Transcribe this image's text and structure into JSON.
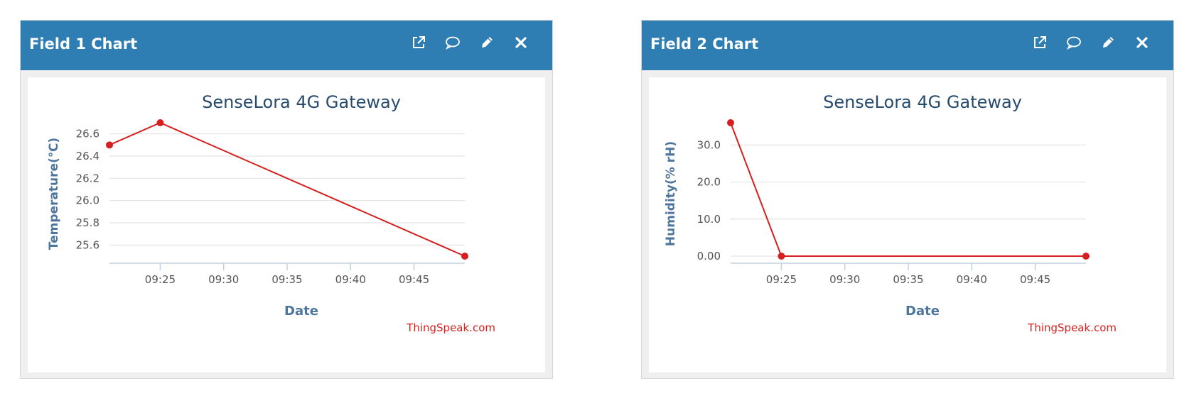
{
  "panels": [
    {
      "title": "Field 1 Chart",
      "icons": [
        "external-link-icon",
        "comment-icon",
        "pencil-icon",
        "close-icon"
      ]
    },
    {
      "title": "Field 2 Chart",
      "icons": [
        "external-link-icon",
        "comment-icon",
        "pencil-icon",
        "close-icon"
      ]
    }
  ],
  "colors": {
    "header": "#2e7db3",
    "series": "#d62020",
    "title": "#274b6d",
    "axis_label": "#4d759e",
    "credit": "#d62020"
  },
  "chart_data": [
    {
      "type": "line",
      "title": "SenseLora 4G Gateway",
      "xlabel": "Date",
      "ylabel": "Temperature(℃)",
      "credit": "ThingSpeak.com",
      "x": [
        "09:21",
        "09:25",
        "09:49"
      ],
      "series": [
        {
          "values": [
            26.5,
            26.7,
            25.5
          ]
        }
      ],
      "xlim": [
        "09:21",
        "09:49"
      ],
      "ylim": [
        25.5,
        26.7
      ],
      "x_ticks": [
        "09:25",
        "09:30",
        "09:35",
        "09:40",
        "09:45"
      ],
      "y_ticks": [
        25.6,
        25.8,
        26.0,
        26.2,
        26.4,
        26.6
      ],
      "y_tick_labels": [
        "25.6",
        "25.8",
        "26.0",
        "26.2",
        "26.4",
        "26.6"
      ],
      "grid": true,
      "legend": "none"
    },
    {
      "type": "line",
      "title": "SenseLora 4G Gateway",
      "xlabel": "Date",
      "ylabel": "Humidity(% rH)",
      "credit": "ThingSpeak.com",
      "x": [
        "09:21",
        "09:25",
        "09:49"
      ],
      "series": [
        {
          "values": [
            36,
            0,
            0
          ]
        }
      ],
      "xlim": [
        "09:21",
        "09:49"
      ],
      "ylim": [
        0,
        36
      ],
      "x_ticks": [
        "09:25",
        "09:30",
        "09:35",
        "09:40",
        "09:45"
      ],
      "y_ticks": [
        0,
        10,
        20,
        30
      ],
      "y_tick_labels": [
        "0.00",
        "10.0",
        "20.0",
        "30.0"
      ],
      "grid": true,
      "legend": "none"
    }
  ]
}
